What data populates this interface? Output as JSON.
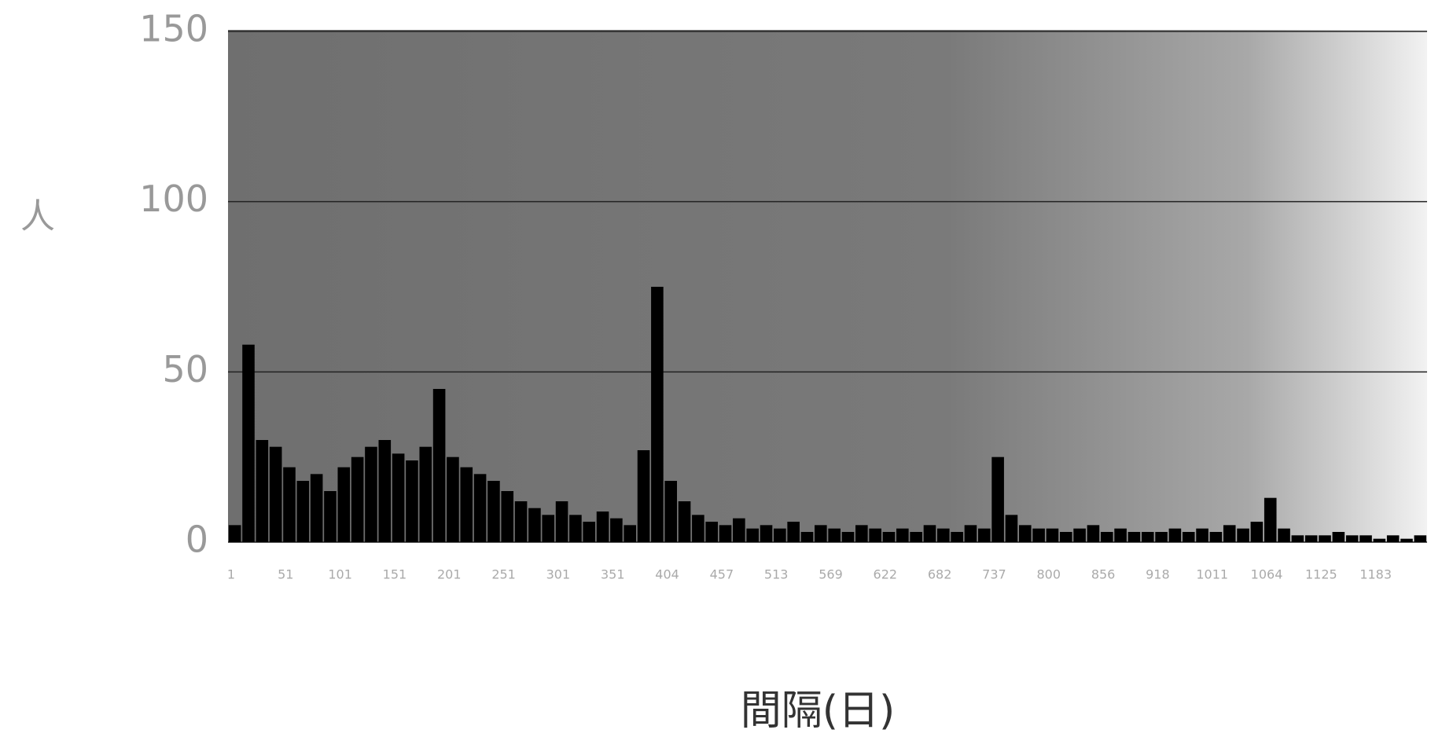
{
  "chart_data": {
    "type": "bar",
    "x_label": "間隔(日)",
    "y_label": "人",
    "categories": [
      "1",
      null,
      null,
      null,
      "51",
      null,
      null,
      null,
      "101",
      null,
      null,
      null,
      "151",
      null,
      null,
      null,
      "201",
      null,
      null,
      null,
      "251",
      null,
      null,
      null,
      "301",
      null,
      null,
      null,
      "351",
      null,
      null,
      null,
      "404",
      null,
      null,
      null,
      "457",
      null,
      null,
      null,
      "513",
      null,
      null,
      null,
      "569",
      null,
      null,
      null,
      "622",
      null,
      null,
      null,
      "682",
      null,
      null,
      null,
      "737",
      null,
      null,
      null,
      "800",
      null,
      null,
      null,
      "856",
      null,
      null,
      null,
      "918",
      null,
      null,
      null,
      "1011",
      null,
      null,
      null,
      "1064",
      null,
      null,
      null,
      "1125",
      null,
      null,
      null,
      "1183",
      null,
      null,
      null
    ],
    "values": [
      5,
      58,
      30,
      28,
      22,
      18,
      20,
      15,
      22,
      25,
      28,
      30,
      26,
      24,
      28,
      45,
      25,
      22,
      20,
      18,
      15,
      12,
      10,
      8,
      12,
      8,
      6,
      9,
      7,
      5,
      27,
      75,
      18,
      12,
      8,
      6,
      5,
      7,
      4,
      5,
      4,
      6,
      3,
      5,
      4,
      3,
      5,
      4,
      3,
      4,
      3,
      5,
      4,
      3,
      5,
      4,
      25,
      8,
      5,
      4,
      4,
      3,
      4,
      5,
      3,
      4,
      3,
      3,
      3,
      4,
      3,
      4,
      3,
      5,
      4,
      6,
      13,
      4,
      2,
      2,
      2,
      3,
      2,
      2,
      1,
      2,
      1,
      2
    ],
    "color": "#000000",
    "ylim": [
      0,
      150
    ],
    "yticks": [
      0,
      50,
      100,
      150
    ],
    "grid": true
  }
}
